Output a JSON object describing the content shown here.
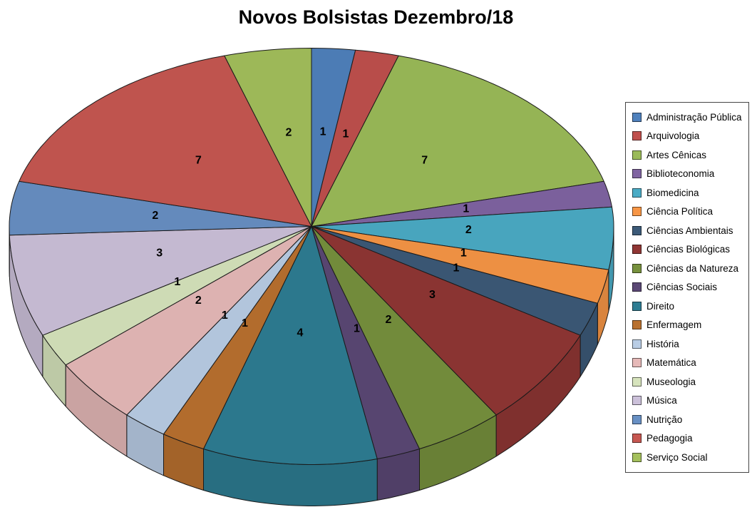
{
  "title": "Novos Bolsistas Dezembro/18",
  "chart_data": {
    "type": "pie",
    "style": "3d",
    "title": "Novos Bolsistas Dezembro/18",
    "total": 43,
    "data_labels": "value",
    "legend_position": "right",
    "start_angle_deg": -90,
    "direction": "clockwise",
    "categories": [
      "Administração Pública",
      "Arquivologia",
      "Artes Cênicas",
      "Biblioteconomia",
      "Biomedicina",
      "Ciência Política",
      "Ciências Ambientais",
      "Ciências Biológicas",
      "Ciências da Natureza",
      "Ciências Sociais",
      "Direito",
      "Enfermagem",
      "História",
      "Matemática",
      "Museologia",
      "Música",
      "Nutrição",
      "Pedagogia",
      "Serviço Social"
    ],
    "values": [
      1,
      1,
      7,
      1,
      2,
      1,
      1,
      3,
      2,
      1,
      4,
      1,
      1,
      2,
      1,
      3,
      2,
      7,
      2
    ],
    "colors": [
      "#4F81BD",
      "#C0504D",
      "#9BBB59",
      "#8064A2",
      "#4BACC6",
      "#F79646",
      "#3C5A78",
      "#903634",
      "#77913D",
      "#5B4875",
      "#2E7D93",
      "#B9712F",
      "#B9CDE5",
      "#E6B9B8",
      "#D7E4BD",
      "#CCC1DA",
      "#6890C4",
      "#C75751",
      "#A4C05C"
    ]
  }
}
